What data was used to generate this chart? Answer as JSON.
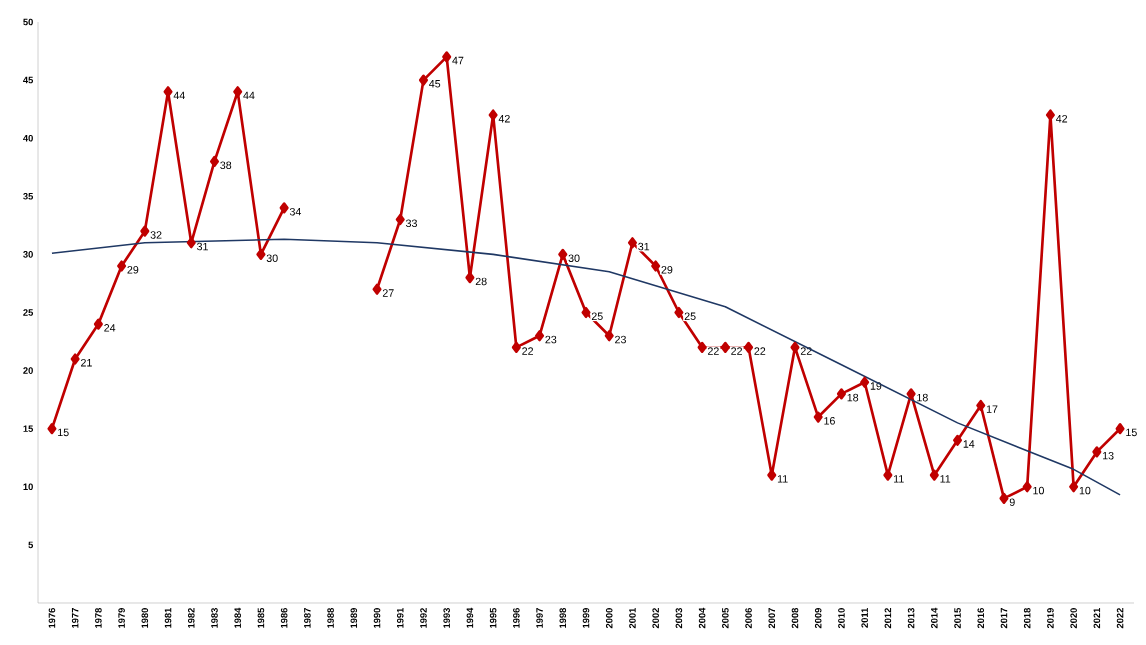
{
  "chart_data": {
    "type": "line",
    "x": [
      1976,
      1977,
      1978,
      1979,
      1980,
      1981,
      1982,
      1983,
      1984,
      1985,
      1986,
      1987,
      1988,
      1989,
      1990,
      1991,
      1992,
      1993,
      1994,
      1995,
      1996,
      1997,
      1998,
      1999,
      2000,
      2001,
      2002,
      2003,
      2004,
      2005,
      2006,
      2007,
      2008,
      2009,
      2010,
      2011,
      2012,
      2013,
      2014,
      2015,
      2016,
      2017,
      2018,
      2019,
      2020,
      2021,
      2022
    ],
    "series": [
      {
        "color": "#c00000",
        "marker": "diamond",
        "values": [
          15,
          21,
          24,
          29,
          32,
          44,
          31,
          38,
          44,
          30,
          34,
          null,
          null,
          null,
          27,
          33,
          45,
          47,
          28,
          42,
          22,
          23,
          30,
          25,
          23,
          31,
          29,
          25,
          22,
          22,
          22,
          11,
          22,
          16,
          18,
          19,
          11,
          18,
          11,
          14,
          17,
          9,
          10,
          42,
          10,
          13,
          15
        ],
        "value_labels": [
          "15",
          "21",
          "24",
          "29",
          "32",
          "44",
          "31",
          "38",
          "44",
          "30",
          "34",
          null,
          null,
          null,
          "27",
          "33",
          "45",
          "47",
          "28",
          "42",
          "22",
          "23",
          "30",
          "25",
          "23",
          "31",
          "29",
          "25",
          "22",
          "22",
          "22",
          "11",
          "22",
          "16",
          "18",
          "19",
          "11",
          "18",
          "11",
          "14",
          "17",
          "9",
          "10",
          "42",
          "10",
          "13",
          "15"
        ]
      },
      {
        "type": "line",
        "color": "#1f3864",
        "marker": "none",
        "x": [
          1976,
          1980,
          1986,
          1990,
          1995,
          2000,
          2005,
          2010,
          2015,
          2020,
          2022
        ],
        "values": [
          30.1,
          31,
          31.3,
          31,
          30,
          28.5,
          25.5,
          20.5,
          15.5,
          11.5,
          9.3
        ]
      }
    ],
    "xlim": [
      1975.4,
      2022.6
    ],
    "ylim": [
      0,
      50
    ],
    "xticks": [
      1976,
      1977,
      1978,
      1979,
      1980,
      1981,
      1982,
      1983,
      1984,
      1985,
      1986,
      1987,
      1988,
      1989,
      1990,
      1991,
      1992,
      1993,
      1994,
      1995,
      1996,
      1997,
      1998,
      1999,
      2000,
      2001,
      2002,
      2003,
      2004,
      2005,
      2006,
      2007,
      2008,
      2009,
      2010,
      2011,
      2012,
      2013,
      2014,
      2015,
      2016,
      2017,
      2018,
      2019,
      2020,
      2021,
      2022
    ],
    "yticks": [
      5,
      10,
      15,
      20,
      25,
      30,
      35,
      40,
      45,
      50
    ],
    "grid": false
  }
}
